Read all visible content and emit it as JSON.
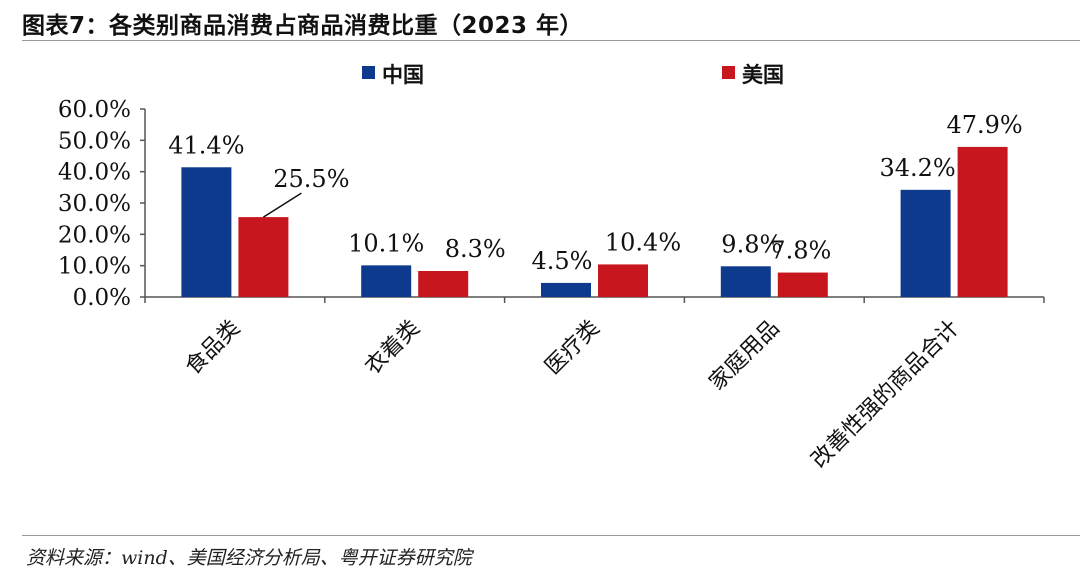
{
  "title": "图表7：各类别商品消费占商品消费比重（2023 年）",
  "source": "资料来源：wind、美国经济分析局、粤开证券研究院",
  "colors": {
    "china": "#0d3a8c",
    "usa": "#c8161e",
    "axis": "#555555"
  },
  "chart_data": {
    "type": "bar",
    "categories": [
      "食品类",
      "衣着类",
      "医疗类",
      "家庭用品",
      "改善性强的商品合计"
    ],
    "series": [
      {
        "name": "中国",
        "values": [
          41.4,
          10.1,
          4.5,
          9.8,
          34.2
        ],
        "labels": [
          "41.4%",
          "10.1%",
          "4.5%",
          "9.8%",
          "34.2%"
        ]
      },
      {
        "name": "美国",
        "values": [
          25.5,
          8.3,
          10.4,
          7.8,
          47.9
        ],
        "labels": [
          "25.5%",
          "8.3%",
          "10.4%",
          "7.8%",
          "47.9%"
        ]
      }
    ],
    "ylim": [
      0,
      60
    ],
    "yticks": [
      "0.0%",
      "10.0%",
      "20.0%",
      "30.0%",
      "40.0%",
      "50.0%",
      "60.0%"
    ],
    "legend": "top",
    "grid": false
  }
}
